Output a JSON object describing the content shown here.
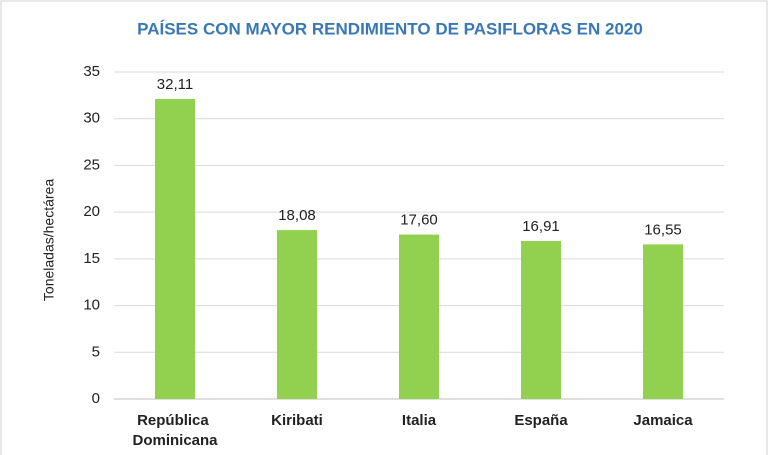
{
  "chart_data": {
    "type": "bar",
    "title": "PAÍSES CON MAYOR RENDIMIENTO DE PASIFLORAS EN 2020",
    "y_label": "Toneladas/hectárea",
    "categories": [
      "República Dominicana",
      "Kiribati",
      "Italia",
      "España",
      "Jamaica"
    ],
    "values": [
      32.11,
      18.08,
      17.6,
      16.91,
      16.55
    ],
    "value_labels": [
      "32,11",
      "18,08",
      "17,60",
      "16,91",
      "16,55"
    ],
    "color": "#92d050",
    "ylim": [
      0,
      35
    ],
    "yticks": [
      0,
      5,
      10,
      15,
      20,
      25,
      30,
      35
    ],
    "grid": true
  }
}
